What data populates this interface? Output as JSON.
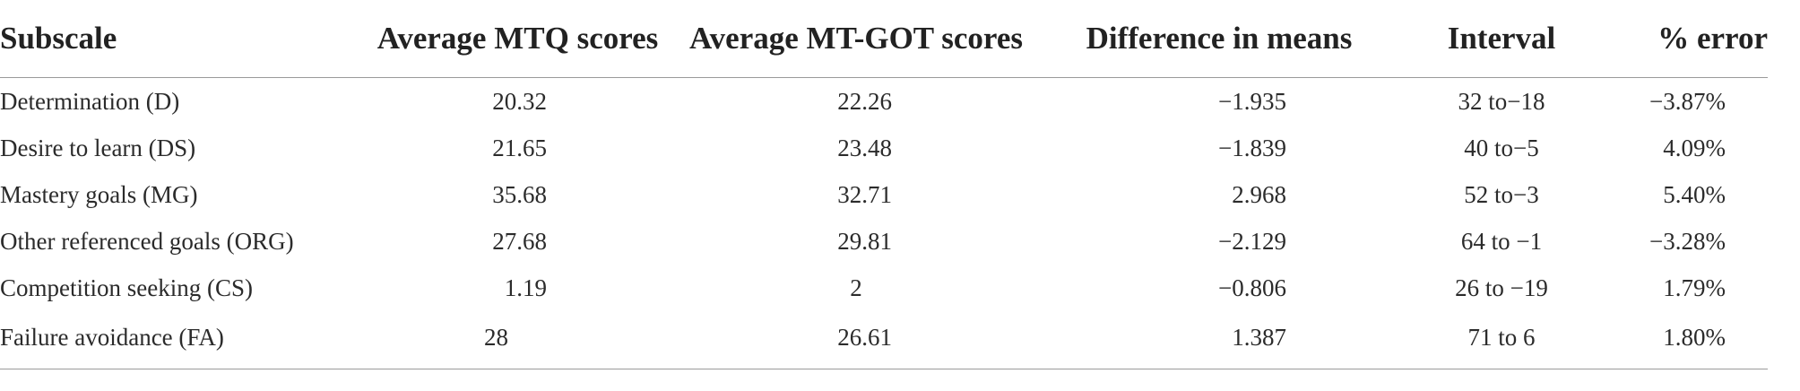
{
  "table": {
    "headers": {
      "subscale": "Subscale",
      "mtq": "Average MTQ scores",
      "mtgot": "Average MT-GOT scores",
      "diff": "Difference in means",
      "interval": "Interval",
      "error": "% error"
    },
    "rows": [
      {
        "subscale": "Determination (D)",
        "mtq": "20.32",
        "mtgot": "22.26",
        "diff": "−1.935",
        "interval": "32 to−18",
        "error": "−3.87%"
      },
      {
        "subscale": "Desire to learn (DS)",
        "mtq": "21.65",
        "mtgot": "23.48",
        "diff": "−1.839",
        "interval": "40 to−5",
        "error": "4.09%"
      },
      {
        "subscale": "Mastery goals (MG)",
        "mtq": "35.68",
        "mtgot": "32.71",
        "diff": "2.968",
        "interval": "52 to−3",
        "error": "5.40%"
      },
      {
        "subscale": "Other referenced goals (ORG)",
        "mtq": "27.68",
        "mtgot": "29.81",
        "diff": "−2.129",
        "interval": "64 to −1",
        "error": "−3.28%"
      },
      {
        "subscale": "Competition seeking (CS)",
        "mtq": "1.19",
        "mtgot": "2",
        "diff": "−0.806",
        "interval": "26 to −19",
        "error": "1.79%"
      },
      {
        "subscale": "Failure avoidance (FA)",
        "mtq": "28",
        "mtgot": "26.61",
        "diff": "1.387",
        "interval": "71 to 6",
        "error": "1.80%"
      }
    ]
  }
}
